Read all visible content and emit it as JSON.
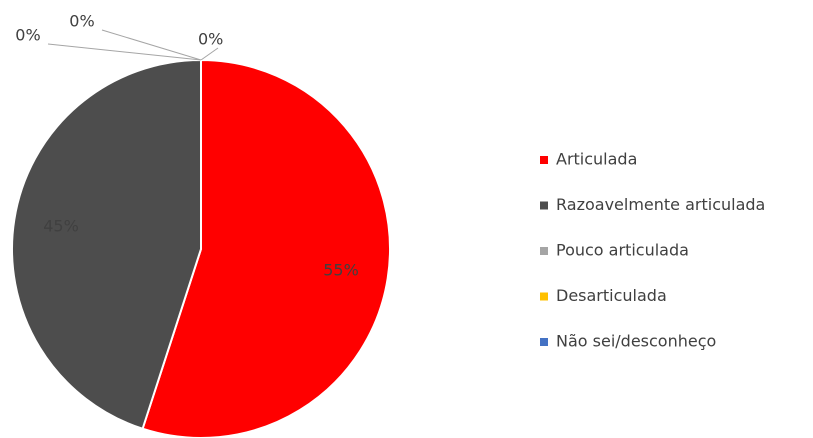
{
  "chart_data": {
    "type": "pie",
    "categories": [
      "Articulada",
      "Razoavelmente articulada",
      "Pouco articulada",
      "Desarticulada",
      "Não sei/desconheço"
    ],
    "values": [
      55,
      45,
      0,
      0,
      0
    ],
    "value_labels": [
      "55%",
      "45%",
      "0%",
      "0%",
      "0%"
    ],
    "colors": [
      "#ff0000",
      "#4d4d4d",
      "#a5a5a5",
      "#ffc000",
      "#4472c4"
    ],
    "legend": "right"
  }
}
